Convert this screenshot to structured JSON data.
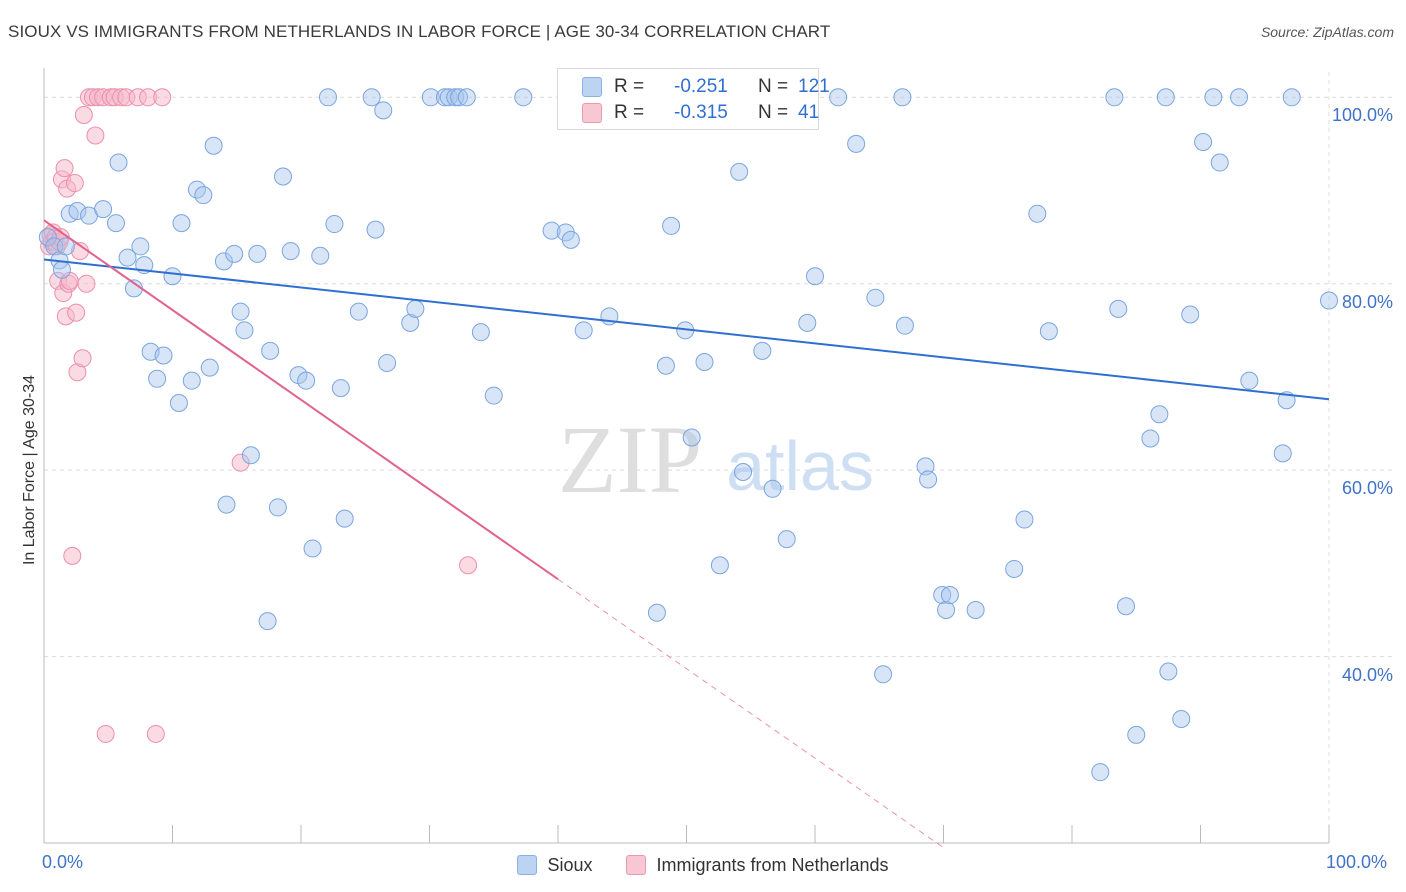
{
  "title": "SIOUX VS IMMIGRANTS FROM NETHERLANDS IN LABOR FORCE | AGE 30-34 CORRELATION CHART",
  "source": "Source: ZipAtlas.com",
  "watermark": {
    "zip": "ZIP",
    "atlas": "atlas"
  },
  "colors": {
    "sioux_fill": "#a9c6ee",
    "sioux_stroke": "#7aa5df",
    "sioux_line": "#2f6fd0",
    "neth_fill": "#f6b7c9",
    "neth_stroke": "#ec8fab",
    "neth_line": "#e2628f",
    "tick_label": "#3f72c8",
    "grid": "#dcdcdc"
  },
  "stats": [
    {
      "series": "Sioux",
      "r_label": "R =",
      "r": "-0.251",
      "n_label": "N =",
      "n": "121"
    },
    {
      "series": "Immigrants from Netherlands",
      "r_label": "R =",
      "r": "-0.315",
      "n_label": "N =",
      "n": "41"
    }
  ],
  "legend": [
    {
      "label": "Sioux",
      "color": "#a9c6ee"
    },
    {
      "label": "Immigrants from Netherlands",
      "color": "#f6b7c9"
    }
  ],
  "chart_data": {
    "type": "scatter",
    "title": "SIOUX VS IMMIGRANTS FROM NETHERLANDS IN LABOR FORCE | AGE 30-34 CORRELATION CHART",
    "xlabel": "",
    "ylabel": "In Labor Force | Age 30-34",
    "xlim": [
      0,
      100
    ],
    "ylim": [
      20,
      104
    ],
    "x_tick_labels": [
      "0.0%",
      "100.0%"
    ],
    "y_ticks": [
      40,
      60,
      80,
      100
    ],
    "y_tick_labels": [
      "40.0%",
      "60.0%",
      "80.0%",
      "100.0%"
    ],
    "grid": true,
    "legend_position": "bottom",
    "series": [
      {
        "name": "Sioux",
        "points": [
          [
            0.3,
            85
          ],
          [
            0.8,
            84
          ],
          [
            1.2,
            82.5
          ],
          [
            1.4,
            81.5
          ],
          [
            1.7,
            84
          ],
          [
            2,
            87.5
          ],
          [
            2.6,
            87.8
          ],
          [
            3.5,
            87.3
          ],
          [
            4.6,
            88
          ],
          [
            5.6,
            86.5
          ],
          [
            5.8,
            93
          ],
          [
            6.5,
            82.8
          ],
          [
            7,
            79.5
          ],
          [
            7.5,
            84
          ],
          [
            7.8,
            82
          ],
          [
            8.3,
            72.7
          ],
          [
            8.8,
            69.8
          ],
          [
            9.3,
            72.3
          ],
          [
            10,
            80.8
          ],
          [
            10.5,
            67.2
          ],
          [
            10.7,
            86.5
          ],
          [
            11.5,
            69.6
          ],
          [
            11.9,
            90.1
          ],
          [
            12.4,
            89.5
          ],
          [
            12.9,
            71
          ],
          [
            13.2,
            94.8
          ],
          [
            14,
            82.4
          ],
          [
            14.2,
            56.3
          ],
          [
            14.8,
            83.2
          ],
          [
            15.3,
            77
          ],
          [
            15.6,
            75
          ],
          [
            16.1,
            61.6
          ],
          [
            16.6,
            83.2
          ],
          [
            17.4,
            43.8
          ],
          [
            17.6,
            72.8
          ],
          [
            18.2,
            56
          ],
          [
            18.6,
            91.5
          ],
          [
            19.2,
            83.5
          ],
          [
            19.8,
            70.2
          ],
          [
            20.4,
            69.6
          ],
          [
            20.9,
            51.6
          ],
          [
            21.5,
            83
          ],
          [
            22.1,
            100
          ],
          [
            22.6,
            86.4
          ],
          [
            23.1,
            68.8
          ],
          [
            23.4,
            54.8
          ],
          [
            24.5,
            77
          ],
          [
            25.5,
            100
          ],
          [
            25.8,
            85.8
          ],
          [
            26.4,
            98.6
          ],
          [
            26.7,
            71.5
          ],
          [
            28.5,
            75.8
          ],
          [
            28.9,
            77.3
          ],
          [
            30.1,
            100
          ],
          [
            31.2,
            100
          ],
          [
            31.5,
            100
          ],
          [
            32,
            100
          ],
          [
            32.3,
            100
          ],
          [
            32.9,
            100
          ],
          [
            34,
            74.8
          ],
          [
            35,
            68
          ],
          [
            37.3,
            100
          ],
          [
            39.5,
            85.7
          ],
          [
            40.6,
            85.5
          ],
          [
            41,
            84.7
          ],
          [
            42,
            75
          ],
          [
            44,
            76.5
          ],
          [
            47.4,
            100
          ],
          [
            47.7,
            44.7
          ],
          [
            48.4,
            71.2
          ],
          [
            48.8,
            86.2
          ],
          [
            49.9,
            75
          ],
          [
            50.4,
            63.5
          ],
          [
            51.4,
            71.6
          ],
          [
            52.6,
            49.8
          ],
          [
            54.1,
            92
          ],
          [
            54.4,
            59.8
          ],
          [
            55.5,
            100
          ],
          [
            55.9,
            72.8
          ],
          [
            56.7,
            58
          ],
          [
            57.4,
            100
          ],
          [
            57.8,
            52.6
          ],
          [
            59.4,
            75.8
          ],
          [
            60,
            80.8
          ],
          [
            61.8,
            100
          ],
          [
            63.2,
            95
          ],
          [
            64.7,
            78.5
          ],
          [
            65.3,
            38.1
          ],
          [
            66.8,
            100
          ],
          [
            67,
            75.5
          ],
          [
            68.6,
            60.4
          ],
          [
            68.8,
            59
          ],
          [
            69.9,
            46.6
          ],
          [
            70.2,
            45
          ],
          [
            70.5,
            46.6
          ],
          [
            72.5,
            45
          ],
          [
            75.5,
            49.4
          ],
          [
            76.3,
            54.7
          ],
          [
            77.3,
            87.5
          ],
          [
            78.2,
            74.9
          ],
          [
            82.2,
            27.6
          ],
          [
            83.3,
            100
          ],
          [
            83.6,
            77.3
          ],
          [
            84.2,
            45.4
          ],
          [
            85,
            31.6
          ],
          [
            86.1,
            63.4
          ],
          [
            86.8,
            66
          ],
          [
            87.3,
            100
          ],
          [
            87.5,
            38.4
          ],
          [
            88.5,
            33.3
          ],
          [
            89.2,
            76.7
          ],
          [
            90.2,
            95.2
          ],
          [
            91,
            100
          ],
          [
            91.5,
            93
          ],
          [
            93,
            100
          ],
          [
            93.8,
            69.6
          ],
          [
            96.4,
            61.8
          ],
          [
            96.7,
            67.5
          ],
          [
            97.1,
            100
          ],
          [
            100,
            78.2
          ]
        ],
        "trend": {
          "x": [
            0,
            100
          ],
          "y": [
            82.6,
            67.6
          ]
        }
      },
      {
        "name": "Immigrants from Netherlands",
        "points": [
          [
            0.4,
            84
          ],
          [
            0.5,
            85.2
          ],
          [
            0.6,
            84.5
          ],
          [
            0.7,
            85.5
          ],
          [
            0.8,
            84.5
          ],
          [
            0.9,
            85
          ],
          [
            1,
            84
          ],
          [
            1.1,
            80.3
          ],
          [
            1.2,
            84.5
          ],
          [
            1.3,
            85
          ],
          [
            1.4,
            91.2
          ],
          [
            1.5,
            79
          ],
          [
            1.6,
            92.4
          ],
          [
            1.7,
            76.5
          ],
          [
            1.8,
            90.2
          ],
          [
            1.9,
            80
          ],
          [
            2,
            80.3
          ],
          [
            2.2,
            50.8
          ],
          [
            2.4,
            90.8
          ],
          [
            2.5,
            76.9
          ],
          [
            2.6,
            70.5
          ],
          [
            2.8,
            83.5
          ],
          [
            3,
            72
          ],
          [
            3.1,
            98.1
          ],
          [
            3.3,
            80
          ],
          [
            3.5,
            100
          ],
          [
            3.8,
            100
          ],
          [
            4,
            95.9
          ],
          [
            4.2,
            100
          ],
          [
            4.6,
            100
          ],
          [
            4.8,
            31.7
          ],
          [
            5.2,
            100
          ],
          [
            5.5,
            100
          ],
          [
            6,
            100
          ],
          [
            6.4,
            100
          ],
          [
            7.3,
            100
          ],
          [
            8.1,
            100
          ],
          [
            8.7,
            31.7
          ],
          [
            9.2,
            100
          ],
          [
            15.3,
            60.8
          ],
          [
            33,
            49.8
          ]
        ],
        "trend": {
          "x": [
            0,
            40
          ],
          "y": [
            86.8,
            48.3
          ]
        },
        "trend_extension": {
          "x": [
            40,
            70
          ],
          "y": [
            48.3,
            19.5
          ]
        }
      }
    ]
  }
}
